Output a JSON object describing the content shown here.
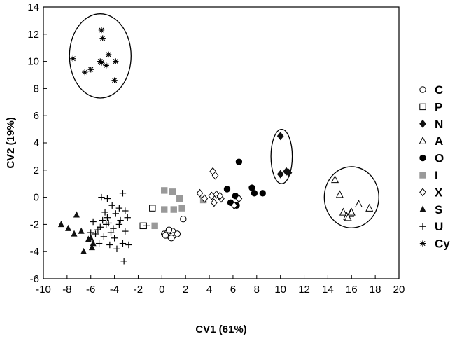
{
  "chart_data": {
    "type": "scatter",
    "title": "",
    "xlabel": "CV1 (61%)",
    "ylabel": "CV2 (19%)",
    "xlim": [
      -10,
      20
    ],
    "ylim": [
      -6,
      14
    ],
    "xticks": [
      "-10",
      "-8",
      "-6",
      "-4",
      "-2",
      "0",
      "2",
      "4",
      "6",
      "8",
      "10",
      "12",
      "14",
      "16",
      "18",
      "20"
    ],
    "yticks": [
      "-6",
      "-4",
      "-2",
      "0",
      "2",
      "4",
      "6",
      "8",
      "10",
      "12",
      "14"
    ],
    "grid": false,
    "legend_position": "right",
    "series": [
      {
        "name": "C",
        "marker": "circle-open",
        "points": [
          [
            0.2,
            -2.7
          ],
          [
            0.5,
            -2.6
          ],
          [
            0.7,
            -2.9
          ],
          [
            0.9,
            -2.5
          ],
          [
            1.0,
            -2.8
          ],
          [
            0.6,
            -2.4
          ],
          [
            1.3,
            -2.7
          ],
          [
            1.8,
            -1.6
          ],
          [
            0.3,
            -2.8
          ],
          [
            0.8,
            -3.0
          ]
        ]
      },
      {
        "name": "P",
        "marker": "square-open",
        "points": [
          [
            -1.6,
            -2.1
          ],
          [
            -0.8,
            -0.8
          ]
        ]
      },
      {
        "name": "N",
        "marker": "diamond-filled",
        "points": [
          [
            10.0,
            4.5
          ],
          [
            10.0,
            1.7
          ],
          [
            10.5,
            1.9
          ],
          [
            10.7,
            1.8
          ]
        ]
      },
      {
        "name": "A",
        "marker": "triangle-open",
        "points": [
          [
            14.6,
            1.3
          ],
          [
            15.0,
            0.2
          ],
          [
            15.3,
            -1.1
          ],
          [
            15.6,
            -1.4
          ],
          [
            15.9,
            -1.2
          ],
          [
            16.0,
            -1.1
          ],
          [
            16.6,
            -0.5
          ],
          [
            17.5,
            -0.8
          ],
          [
            15.7,
            -1.5
          ]
        ]
      },
      {
        "name": "O",
        "marker": "circle-filled",
        "points": [
          [
            6.5,
            2.6
          ],
          [
            5.5,
            0.6
          ],
          [
            6.2,
            0.1
          ],
          [
            5.8,
            -0.4
          ],
          [
            6.3,
            -0.6
          ],
          [
            7.6,
            0.7
          ],
          [
            7.8,
            0.3
          ],
          [
            8.5,
            0.3
          ]
        ]
      },
      {
        "name": "I",
        "marker": "square-gray",
        "points": [
          [
            0.2,
            0.5
          ],
          [
            0.9,
            0.4
          ],
          [
            1.5,
            -0.1
          ],
          [
            0.2,
            -0.9
          ],
          [
            1.0,
            -0.9
          ],
          [
            1.7,
            -0.8
          ],
          [
            -0.6,
            -2.1
          ],
          [
            3.5,
            -0.2
          ]
        ]
      },
      {
        "name": "X",
        "marker": "diamond-open",
        "points": [
          [
            3.2,
            0.3
          ],
          [
            3.6,
            -0.1
          ],
          [
            4.3,
            1.9
          ],
          [
            4.5,
            1.6
          ],
          [
            4.2,
            0.1
          ],
          [
            4.6,
            0.2
          ],
          [
            4.4,
            -0.4
          ],
          [
            5.0,
            -0.1
          ],
          [
            6.1,
            -0.6
          ],
          [
            6.5,
            -0.1
          ],
          [
            4.9,
            0.1
          ]
        ]
      },
      {
        "name": "S",
        "marker": "triangle-filled",
        "points": [
          [
            -8.5,
            -2.0
          ],
          [
            -7.9,
            -2.3
          ],
          [
            -7.2,
            -1.3
          ],
          [
            -7.4,
            -2.7
          ],
          [
            -6.8,
            -2.5
          ],
          [
            -6.0,
            -3.0
          ],
          [
            -5.8,
            -3.4
          ],
          [
            -6.6,
            -4.0
          ],
          [
            -5.9,
            -3.7
          ],
          [
            -6.2,
            -3.1
          ]
        ]
      },
      {
        "name": "U",
        "marker": "plus",
        "points": [
          [
            -5.1,
            0.0
          ],
          [
            -4.6,
            -0.1
          ],
          [
            -4.2,
            -0.6
          ],
          [
            -3.3,
            0.3
          ],
          [
            -3.6,
            -0.8
          ],
          [
            -3.1,
            -1.0
          ],
          [
            -2.9,
            -1.5
          ],
          [
            -3.9,
            -1.2
          ],
          [
            -4.6,
            -1.5
          ],
          [
            -4.5,
            -1.9
          ],
          [
            -5.0,
            -1.7
          ],
          [
            -5.8,
            -1.8
          ],
          [
            -5.4,
            -2.4
          ],
          [
            -4.7,
            -2.0
          ],
          [
            -4.3,
            -2.6
          ],
          [
            -3.6,
            -2.0
          ],
          [
            -3.1,
            -2.5
          ],
          [
            -4.0,
            -3.0
          ],
          [
            -4.9,
            -2.9
          ],
          [
            -5.6,
            -2.7
          ],
          [
            -6.0,
            -2.6
          ],
          [
            -5.3,
            -3.4
          ],
          [
            -4.4,
            -3.5
          ],
          [
            -3.8,
            -3.8
          ],
          [
            -3.3,
            -3.4
          ],
          [
            -2.8,
            -3.5
          ],
          [
            -3.2,
            -4.7
          ],
          [
            -1.3,
            -2.1
          ],
          [
            -4.1,
            -2.3
          ],
          [
            -5.2,
            -2.2
          ],
          [
            -3.5,
            -1.7
          ],
          [
            -4.8,
            -1.1
          ]
        ]
      },
      {
        "name": "Cy",
        "marker": "asterisk",
        "points": [
          [
            -5.1,
            12.3
          ],
          [
            -5.0,
            11.7
          ],
          [
            -7.5,
            10.2
          ],
          [
            -6.0,
            9.4
          ],
          [
            -6.5,
            9.2
          ],
          [
            -5.2,
            10.0
          ],
          [
            -4.7,
            9.7
          ],
          [
            -5.1,
            9.9
          ],
          [
            -4.5,
            10.5
          ],
          [
            -3.9,
            10.0
          ],
          [
            -4.0,
            8.6
          ]
        ]
      }
    ],
    "annotations": [
      {
        "type": "ellipse",
        "cx": -5.2,
        "cy": 10.4,
        "rx": 2.6,
        "ry": 3.1
      },
      {
        "type": "ellipse",
        "cx": 10.1,
        "cy": 3.0,
        "rx": 0.9,
        "ry": 2.0
      },
      {
        "type": "ellipse",
        "cx": 16.0,
        "cy": 0.0,
        "rx": 2.3,
        "ry": 2.25
      }
    ]
  }
}
